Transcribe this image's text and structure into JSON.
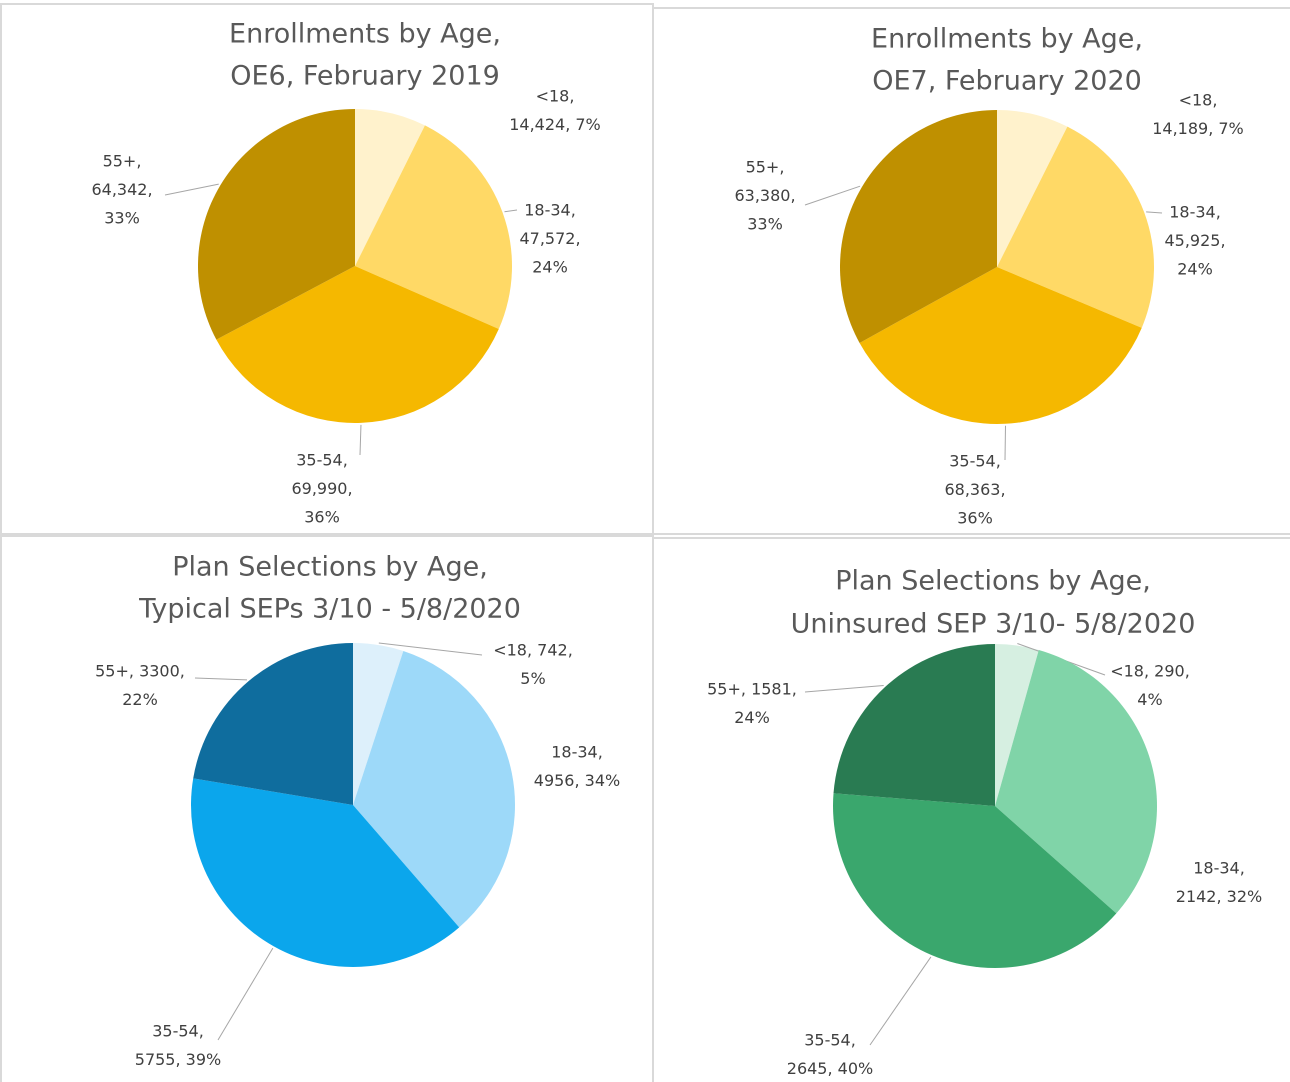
{
  "chart_data": [
    {
      "type": "pie",
      "title": [
        "Enrollments by Age,",
        "OE6, February 2019"
      ],
      "values": [
        14424,
        47572,
        69990,
        64342
      ],
      "value_labels": [
        [
          "<18,",
          "14,424, 7%"
        ],
        [
          "18-34,",
          "47,572,",
          "24%"
        ],
        [
          "35-54,",
          "69,990,",
          "36%"
        ],
        [
          "55+,",
          "64,342,",
          "33%"
        ]
      ],
      "colors": [
        "#fff2cc",
        "#ffd966",
        "#f5b800",
        "#bf9000"
      ]
    },
    {
      "type": "pie",
      "title": [
        "Enrollments by Age,",
        "OE7, February 2020"
      ],
      "values": [
        14189,
        45925,
        68363,
        63380
      ],
      "value_labels": [
        [
          "<18,",
          "14,189, 7%"
        ],
        [
          "18-34,",
          "45,925,",
          "24%"
        ],
        [
          "35-54,",
          "68,363,",
          "36%"
        ],
        [
          "55+,",
          "63,380,",
          "33%"
        ]
      ],
      "colors": [
        "#fff2cc",
        "#ffd966",
        "#f5b800",
        "#bf9000"
      ]
    },
    {
      "type": "pie",
      "title": [
        "Plan Selections by Age,",
        "Typical SEPs 3/10 - 5/8/2020"
      ],
      "values": [
        742,
        4956,
        5755,
        3300
      ],
      "value_labels": [
        [
          "<18, 742,",
          "5%"
        ],
        [
          "18-34,",
          "4956, 34%"
        ],
        [
          "35-54,",
          "5755, 39%"
        ],
        [
          "55+, 3300,",
          "22%"
        ]
      ],
      "colors": [
        "#ddf0fb",
        "#9dd9f9",
        "#0ba6ec",
        "#0f6d9e"
      ]
    },
    {
      "type": "pie",
      "title": [
        "Plan Selections by Age,",
        "Uninsured SEP 3/10- 5/8/2020"
      ],
      "values": [
        290,
        2142,
        2645,
        1581
      ],
      "value_labels": [
        [
          "<18, 290,",
          "4%"
        ],
        [
          "18-34,",
          "2142, 32%"
        ],
        [
          "35-54,",
          "2645, 40%"
        ],
        [
          "55+, 1581,",
          "24%"
        ]
      ],
      "colors": [
        "#d6efe1",
        "#80d4a8",
        "#3aa76d",
        "#297b52"
      ]
    }
  ]
}
